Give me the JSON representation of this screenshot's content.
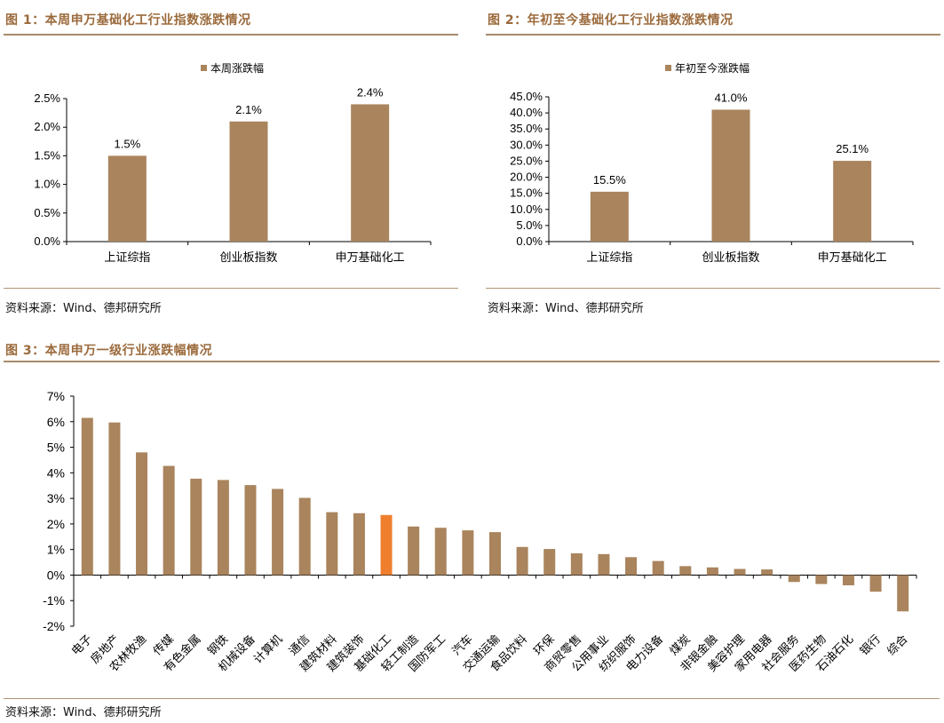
{
  "colors": {
    "bar": "#a9845d",
    "highlight": "#f07f2d",
    "title": "#9b6a3c",
    "rule": "#a78a6d",
    "grid_axis": "#000000"
  },
  "fig1": {
    "title": "图 1：本周申万基础化工行业指数涨跌情况",
    "source": "资料来源：Wind、德邦研究所"
  },
  "fig2": {
    "title": "图 2：年初至今基础化工行业指数涨跌情况",
    "source": "资料来源：Wind、德邦研究所"
  },
  "fig3": {
    "title": "图 3：本周申万一级行业涨跌幅情况",
    "source": "资料来源：Wind、德邦研究所"
  },
  "chart_data": [
    {
      "type": "bar",
      "legend": "本周涨跌幅",
      "legend_position": "top-center",
      "categories": [
        "上证综指",
        "创业板指数",
        "申万基础化工"
      ],
      "values": [
        1.5,
        2.1,
        2.4
      ],
      "value_labels": [
        "1.5%",
        "2.1%",
        "2.4%"
      ],
      "ylim": [
        0,
        2.5
      ],
      "ytick_labels": [
        "0.0%",
        "0.5%",
        "1.0%",
        "1.5%",
        "2.0%",
        "2.5%"
      ],
      "grid": false
    },
    {
      "type": "bar",
      "legend": "年初至今涨跌幅",
      "legend_position": "top-center",
      "categories": [
        "上证综指",
        "创业板指数",
        "申万基础化工"
      ],
      "values": [
        15.5,
        41.0,
        25.1
      ],
      "value_labels": [
        "15.5%",
        "41.0%",
        "25.1%"
      ],
      "ylim": [
        0,
        45
      ],
      "ytick_labels": [
        "0.0%",
        "5.0%",
        "10.0%",
        "15.0%",
        "20.0%",
        "25.0%",
        "30.0%",
        "35.0%",
        "40.0%",
        "45.0%"
      ],
      "grid": false
    },
    {
      "type": "bar",
      "categories": [
        "电子",
        "房地产",
        "农林牧渔",
        "传媒",
        "有色金属",
        "钢铁",
        "机械设备",
        "计算机",
        "通信",
        "建筑材料",
        "建筑装饰",
        "基础化工",
        "轻工制造",
        "国防军工",
        "汽车",
        "交通运输",
        "食品饮料",
        "环保",
        "商贸零售",
        "公用事业",
        "纺织服饰",
        "电力设备",
        "煤炭",
        "非银金融",
        "美容护理",
        "家用电器",
        "社会服务",
        "医药生物",
        "石油石化",
        "银行",
        "综合"
      ],
      "values": [
        6.15,
        5.97,
        4.8,
        4.27,
        3.77,
        3.72,
        3.52,
        3.37,
        3.02,
        2.46,
        2.42,
        2.35,
        1.9,
        1.85,
        1.75,
        1.68,
        1.1,
        1.02,
        0.85,
        0.82,
        0.7,
        0.55,
        0.35,
        0.3,
        0.24,
        0.22,
        -0.27,
        -0.35,
        -0.4,
        -0.65,
        -1.42
      ],
      "highlight_category": "基础化工",
      "ylim": [
        -2,
        7
      ],
      "ytick_labels": [
        "-2%",
        "-1%",
        "0%",
        "1%",
        "2%",
        "3%",
        "4%",
        "5%",
        "6%",
        "7%"
      ],
      "grid": false
    }
  ]
}
